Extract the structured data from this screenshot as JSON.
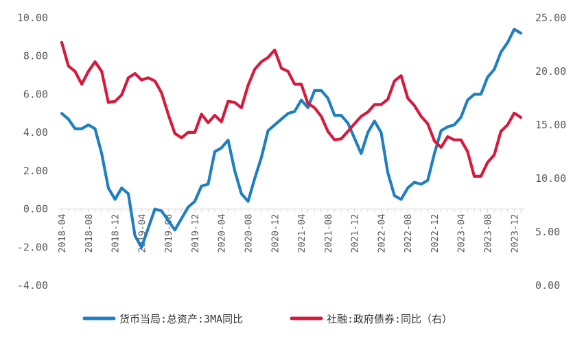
{
  "chart_data": {
    "type": "line",
    "title": "",
    "x": [
      "2018-04",
      "2018-05",
      "2018-06",
      "2018-07",
      "2018-08",
      "2018-09",
      "2018-10",
      "2018-11",
      "2018-12",
      "2019-01",
      "2019-02",
      "2019-03",
      "2019-04",
      "2019-05",
      "2019-06",
      "2019-07",
      "2019-08",
      "2019-09",
      "2019-10",
      "2019-11",
      "2019-12",
      "2020-01",
      "2020-02",
      "2020-03",
      "2020-04",
      "2020-05",
      "2020-06",
      "2020-07",
      "2020-08",
      "2020-09",
      "2020-10",
      "2020-11",
      "2020-12",
      "2021-01",
      "2021-02",
      "2021-03",
      "2021-04",
      "2021-05",
      "2021-06",
      "2021-07",
      "2021-08",
      "2021-09",
      "2021-10",
      "2021-11",
      "2021-12",
      "2022-01",
      "2022-02",
      "2022-03",
      "2022-04",
      "2022-05",
      "2022-06",
      "2022-07",
      "2022-08",
      "2022-09",
      "2022-10",
      "2022-11",
      "2022-12",
      "2023-01",
      "2023-02",
      "2023-03",
      "2023-04",
      "2023-05",
      "2023-06",
      "2023-07",
      "2023-08",
      "2023-09",
      "2023-10",
      "2023-11",
      "2023-12",
      "2024-01"
    ],
    "x_tick_labels": [
      "2018-04",
      "2018-08",
      "2018-12",
      "2019-04",
      "2019-08",
      "2019-12",
      "2020-04",
      "2020-08",
      "2020-12",
      "2021-04",
      "2021-08",
      "2021-12",
      "2022-04",
      "2022-08",
      "2022-12",
      "2023-04",
      "2023-08",
      "2023-12"
    ],
    "left_axis": {
      "ylim": [
        -4,
        10
      ],
      "ticks": [
        "-4.00",
        "-2.00",
        "0.00",
        "2.00",
        "4.00",
        "6.00",
        "8.00",
        "10.00"
      ]
    },
    "right_axis": {
      "ylim": [
        0,
        25
      ],
      "ticks": [
        "0.00",
        "5.00",
        "10.00",
        "15.00",
        "20.00",
        "25.00"
      ]
    },
    "series": [
      {
        "name": "货币当局:总资产:3MA同比",
        "axis": "left",
        "color": "#1f7fc0",
        "values": [
          5.0,
          4.7,
          4.2,
          4.2,
          4.4,
          4.2,
          2.9,
          1.1,
          0.5,
          1.1,
          0.8,
          -1.4,
          -2.0,
          -1.0,
          0.0,
          -0.1,
          -0.6,
          -1.1,
          -0.5,
          0.1,
          0.4,
          1.2,
          1.3,
          3.0,
          3.2,
          3.6,
          2.0,
          0.8,
          0.4,
          1.6,
          2.7,
          4.1,
          4.4,
          4.7,
          5.0,
          5.1,
          5.7,
          5.3,
          6.2,
          6.2,
          5.8,
          4.9,
          4.9,
          4.5,
          3.7,
          2.9,
          4.0,
          4.6,
          4.0,
          1.9,
          0.7,
          0.5,
          1.1,
          1.4,
          1.3,
          1.5,
          2.9,
          4.1,
          4.3,
          4.4,
          4.8,
          5.7,
          6.0,
          6.0,
          6.9,
          7.3,
          8.2,
          8.7,
          9.4,
          9.2
        ]
      },
      {
        "name": "社融:政府债券:同比（右）",
        "axis": "right",
        "color": "#d6193d",
        "values": [
          22.7,
          20.5,
          20.0,
          18.8,
          20.0,
          20.9,
          20.0,
          17.1,
          17.2,
          17.8,
          19.4,
          19.8,
          19.2,
          19.4,
          19.1,
          18.0,
          16.0,
          14.2,
          13.8,
          14.3,
          14.3,
          16.0,
          15.2,
          15.9,
          15.3,
          17.2,
          17.1,
          16.6,
          18.7,
          20.2,
          20.9,
          21.3,
          22.0,
          20.3,
          20.0,
          18.8,
          18.8,
          17.0,
          16.6,
          15.8,
          14.4,
          13.6,
          13.7,
          14.4,
          15.1,
          15.8,
          16.2,
          16.9,
          16.9,
          17.4,
          19.1,
          19.6,
          17.5,
          16.8,
          15.8,
          15.1,
          13.5,
          12.9,
          13.9,
          13.6,
          13.6,
          12.5,
          10.2,
          10.2,
          11.5,
          12.2,
          14.4,
          15.0,
          16.1,
          15.7
        ]
      }
    ]
  }
}
